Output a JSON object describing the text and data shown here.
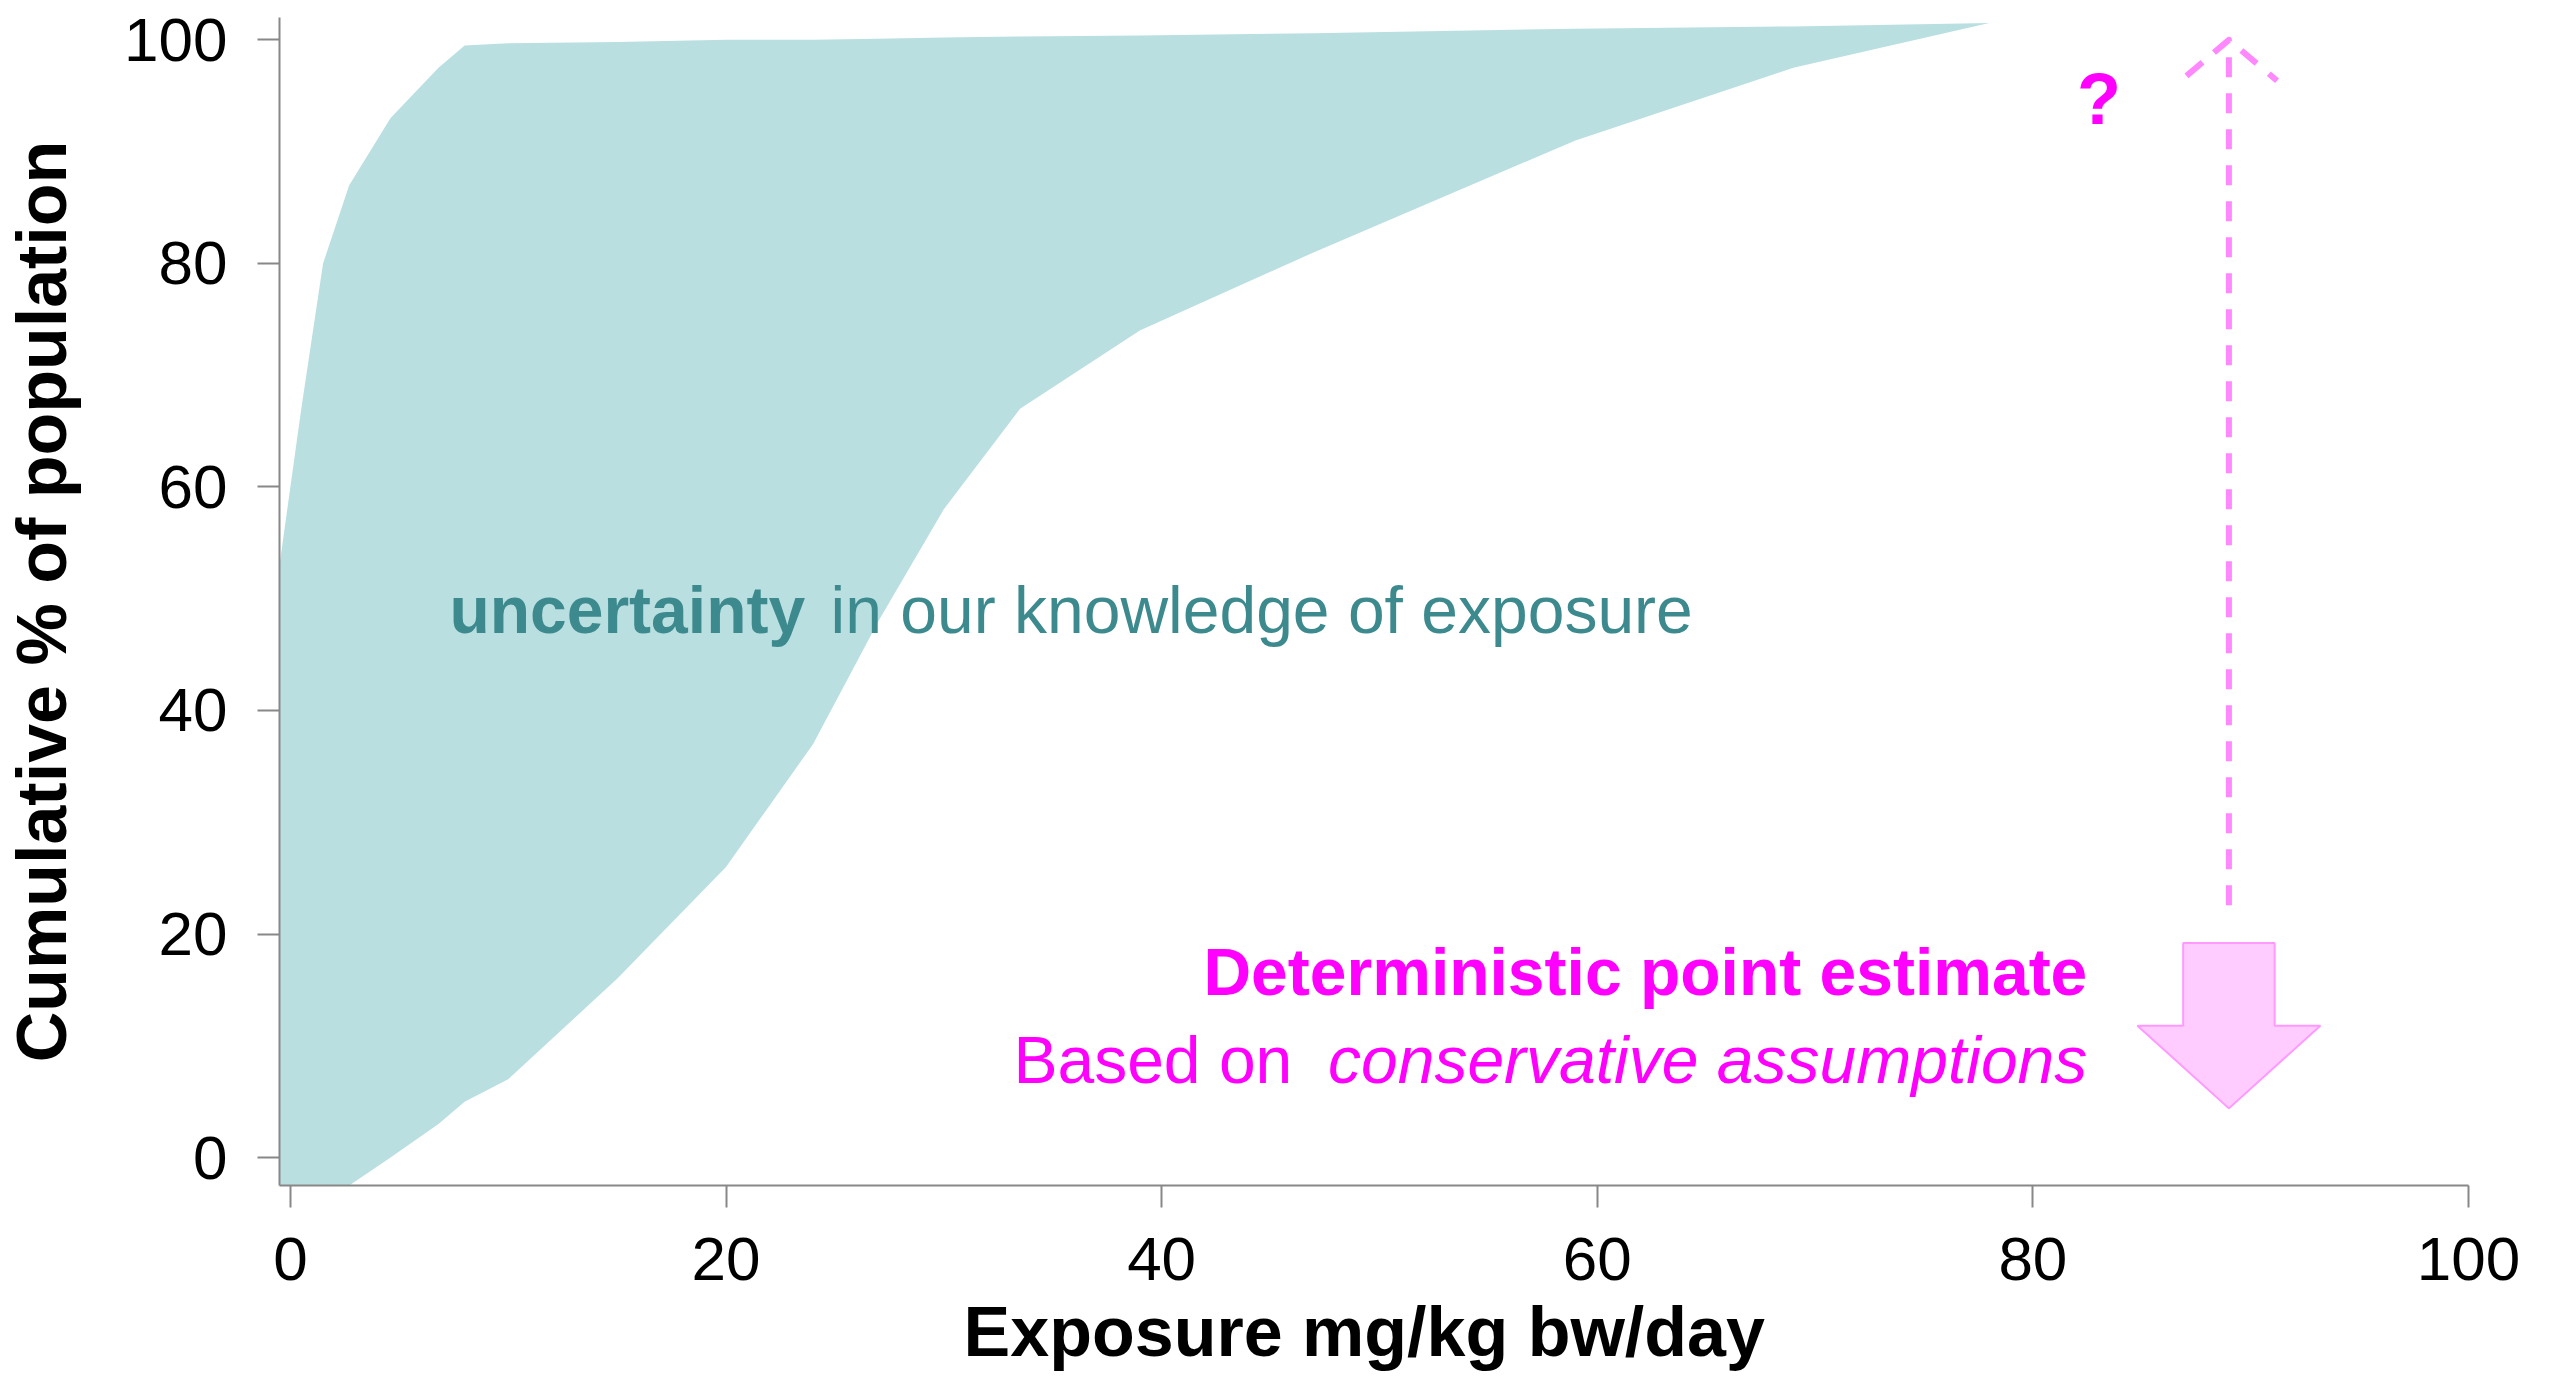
{
  "chart_data": {
    "type": "area",
    "xlabel": "Exposure mg/kg  bw/day",
    "ylabel": "Cumulative % of population",
    "xlim": [
      -0.5,
      100
    ],
    "ylim": [
      -2.5,
      102
    ],
    "xticks": [
      0,
      20,
      40,
      60,
      80,
      100
    ],
    "yticks": [
      0,
      20,
      40,
      60,
      80,
      100
    ],
    "grid": false,
    "series": [
      {
        "color": "#badfe1",
        "x": [
          -0.5,
          0.5,
          1.5,
          2.7,
          4.6,
          6.8,
          8,
          10,
          15,
          20,
          24,
          27,
          30,
          33.5,
          39,
          47,
          59,
          69,
          78
        ],
        "lower": [
          -2.5,
          -2.5,
          -2.5,
          -2.5,
          0,
          3,
          5,
          7,
          16,
          26,
          37,
          48,
          58,
          67,
          74,
          81,
          91,
          97.5,
          101.5
        ],
        "values": [
          null,
          null,
          null,
          null,
          null,
          null,
          null,
          null,
          null,
          null,
          null,
          null,
          null,
          null,
          null,
          null,
          null,
          null,
          null
        ],
        "upper": [
          53,
          67,
          80,
          87,
          93,
          97.5,
          99.5,
          99.7,
          99.8,
          100,
          100,
          100.1,
          100.2,
          100.3,
          100.4,
          100.6,
          101,
          101.2,
          101.5
        ]
      }
    ],
    "ref_lines": [
      {
        "axis": "x",
        "value": 89,
        "label": "?",
        "color": "#ff88ff",
        "line_style": "dashed"
      }
    ],
    "annotations": [
      "uncertainty",
      "in our knowledge of exposure",
      "Deterministic point estimate",
      "Based on",
      "conservative assumptions"
    ]
  }
}
